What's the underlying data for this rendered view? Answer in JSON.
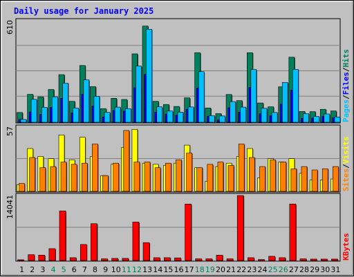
{
  "chart_data": {
    "type": "bar",
    "title": "Daily usage for January 2025",
    "days": [
      "1",
      "2",
      "3",
      "4",
      "5",
      "6",
      "7",
      "8",
      "9",
      "10",
      "11",
      "12",
      "13",
      "14",
      "15",
      "16",
      "17",
      "18",
      "19",
      "20",
      "21",
      "22",
      "23",
      "24",
      "25",
      "26",
      "27",
      "28",
      "29",
      "30",
      "31"
    ],
    "weekend_days": [
      "4",
      "5",
      "11",
      "12",
      "18",
      "19",
      "25",
      "26"
    ],
    "colors": {
      "hits": "#00805c",
      "files": "#0000ff",
      "pages": "#00c0ff",
      "visits": "#ffff00",
      "sites": "#ff8000",
      "kbytes": "#ff0000",
      "title": "#0000ff",
      "weekend_label": "#00805c",
      "weekday_label": "#000000"
    },
    "panels": [
      {
        "name": "hits-files-pages",
        "max_label": "610",
        "ymax": 610,
        "series": [
          {
            "name": "Hits",
            "color": "#00805c",
            "values": [
              59,
              168,
              153,
              197,
              286,
              126,
              341,
              214,
              82,
              144,
              137,
              411,
              578,
              126,
              107,
              95,
              147,
              418,
              86,
              52,
              167,
              130,
              418,
              116,
              93,
              213,
              391,
              65,
              64,
              78,
              68
            ]
          },
          {
            "name": "Files",
            "color": "#0000ff",
            "values": [
              17,
              62,
              48,
              90,
              144,
              56,
              168,
              98,
              32,
              71,
              67,
              208,
              288,
              60,
              49,
              42,
              78,
              206,
              36,
              15,
              87,
              61,
              209,
              51,
              40,
              109,
              193,
              24,
              25,
              35,
              28
            ]
          },
          {
            "name": "Pages",
            "color": "#00c0ff",
            "values": [
              17,
              138,
              90,
              153,
              235,
              86,
              255,
              156,
              60,
              91,
              82,
              338,
              559,
              93,
              68,
              61,
              92,
              304,
              40,
              38,
              124,
              91,
              317,
              84,
              59,
              239,
              318,
              52,
              35,
              50,
              32
            ]
          }
        ],
        "legend": [
          "Pages",
          "/",
          "Files",
          "/",
          "Hits"
        ]
      },
      {
        "name": "visits-sites",
        "max_label": "57",
        "ymax": 57,
        "series": [
          {
            "name": "Visits",
            "color": "#ffff00",
            "values": [
              6,
              38,
              31,
              29,
              50,
              28,
              48,
              31,
              14,
              24,
              39,
              55,
              25,
              24,
              23,
              25,
              41,
              21,
              9,
              22,
              25,
              31,
              38,
              12,
              29,
              26,
              29,
              16,
              10,
              10,
              11
            ]
          },
          {
            "name": "Sites",
            "color": "#ff8000",
            "values": [
              7,
              30,
              21,
              22,
              26,
              24,
              25,
              42,
              14,
              25,
              54,
              26,
              26,
              21,
              25,
              28,
              34,
              21,
              24,
              26,
              23,
              42,
              30,
              22,
              28,
              26,
              20,
              22,
              19,
              20,
              22
            ]
          }
        ],
        "legend": [
          "Sites",
          "/",
          "Visits"
        ]
      },
      {
        "name": "kbytes",
        "max_label": "14041",
        "ymax": 14041,
        "series": [
          {
            "name": "KBytes",
            "color": "#ff0000",
            "values": [
              120,
              1250,
              1150,
              2550,
              10700,
              600,
              3450,
              7950,
              350,
              450,
              450,
              8300,
              3850,
              600,
              600,
              550,
              12200,
              350,
              350,
              1150,
              350,
              14041,
              600,
              200,
              900,
              600,
              12200,
              350,
              300,
              300,
              300
            ]
          }
        ],
        "legend": [
          "KBytes"
        ]
      }
    ]
  }
}
